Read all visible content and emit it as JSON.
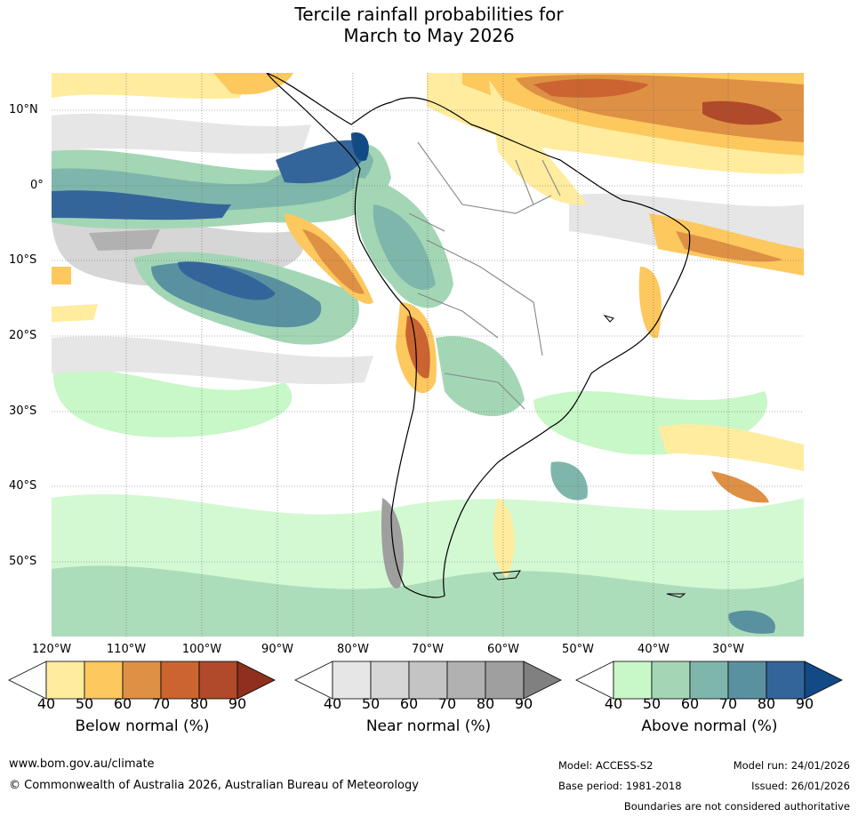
{
  "title_line1": "Tercile rainfall probabilities for",
  "title_line2": "March to May 2026",
  "lat_labels": [
    "10°N",
    "0°",
    "10°S",
    "20°S",
    "30°S",
    "40°S",
    "50°S"
  ],
  "lon_labels": [
    "120°W",
    "110°W",
    "100°W",
    "90°W",
    "80°W",
    "70°W",
    "60°W",
    "50°W",
    "40°W",
    "30°W"
  ],
  "colorbars": [
    {
      "title": "Below normal (%)",
      "ticks": [
        "40",
        "50",
        "60",
        "70",
        "80",
        "90"
      ],
      "colors": [
        "#ffffff",
        "#ffec9e",
        "#fdc85e",
        "#de9045",
        "#cb6430",
        "#b04a2a",
        "#8f2f1d"
      ]
    },
    {
      "title": "Near normal (%)",
      "ticks": [
        "40",
        "50",
        "60",
        "70",
        "80",
        "90"
      ],
      "colors": [
        "#ffffff",
        "#e6e6e6",
        "#d6d6d6",
        "#c4c4c4",
        "#b1b1b1",
        "#9f9f9f",
        "#808080"
      ]
    },
    {
      "title": "Above normal (%)",
      "ticks": [
        "40",
        "50",
        "60",
        "70",
        "80",
        "90"
      ],
      "colors": [
        "#ffffff",
        "#c8f7c8",
        "#a3d6b5",
        "#7eb6ab",
        "#5a91a0",
        "#34659a",
        "#124a86"
      ]
    }
  ],
  "footer": {
    "website": "www.bom.gov.au/climate",
    "copyright": "© Commonwealth of Australia 2026, Australian Bureau of Meteorology",
    "model": "Model: ACCESS-S2",
    "base_period": "Base period: 1981-2018",
    "model_run": "Model run: 24/01/2026",
    "issued": "Issued: 26/01/2026",
    "boundaries_note": "Boundaries are not considered authoritative"
  }
}
